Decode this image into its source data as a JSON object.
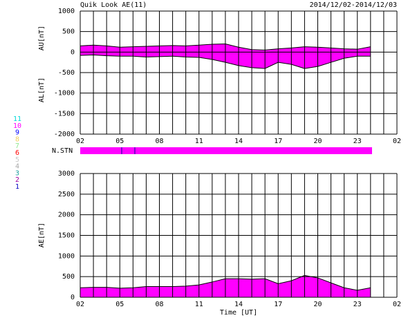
{
  "chart_data": [
    {
      "type": "area",
      "title": "Quik Look AE(11)",
      "subtitle": "2014/12/02-2014/12/03",
      "y_labels": [
        "AU[nT]",
        "AL[nT]"
      ],
      "x": [
        0,
        1,
        2,
        3,
        4,
        5,
        6,
        7,
        8,
        9,
        10,
        11,
        12,
        13,
        14,
        15,
        16,
        17,
        18,
        19,
        20,
        21,
        22
      ],
      "series": [
        {
          "color": "#000000",
          "fill": "#ff00ff",
          "values": [
            150,
            170,
            150,
            120,
            130,
            140,
            150,
            160,
            150,
            170,
            190,
            200,
            120,
            60,
            50,
            80,
            100,
            130,
            120,
            100,
            80,
            70,
            130
          ]
        },
        {
          "color": "#000000",
          "fill": "#ff00ff",
          "values": [
            -80,
            -70,
            -90,
            -100,
            -100,
            -120,
            -110,
            -100,
            -120,
            -130,
            -180,
            -250,
            -330,
            -380,
            -400,
            -250,
            -300,
            -400,
            -350,
            -250,
            -150,
            -100,
            -100
          ]
        }
      ],
      "xlim": [
        0,
        24
      ],
      "xticks": [
        {
          "value": 0,
          "label": "02"
        },
        {
          "value": 3,
          "label": "05"
        },
        {
          "value": 6,
          "label": "08"
        },
        {
          "value": 9,
          "label": "11"
        },
        {
          "value": 12,
          "label": "14"
        },
        {
          "value": 15,
          "label": "17"
        },
        {
          "value": 18,
          "label": "20"
        },
        {
          "value": 21,
          "label": "23"
        },
        {
          "value": 24,
          "label": "02"
        }
      ],
      "x_minor": [
        1,
        2,
        4,
        5,
        7,
        8,
        10,
        11,
        13,
        14,
        16,
        17,
        19,
        20,
        22,
        23
      ],
      "ylim": [
        -2000,
        1000
      ],
      "yticks": [
        -2000,
        -1500,
        -1000,
        -500,
        0,
        500,
        1000
      ],
      "grid": true
    },
    {
      "type": "area",
      "x_label": "Time [UT]",
      "y_labels": [
        "AE[nT]"
      ],
      "x": [
        0,
        1,
        2,
        3,
        4,
        5,
        6,
        7,
        8,
        9,
        10,
        11,
        12,
        13,
        14,
        15,
        16,
        17,
        18,
        19,
        20,
        21,
        22
      ],
      "series": [
        {
          "color": "#000000",
          "fill": "#ff00ff",
          "values": [
            230,
            240,
            240,
            220,
            230,
            260,
            260,
            260,
            270,
            300,
            370,
            450,
            450,
            440,
            450,
            330,
            400,
            530,
            470,
            350,
            230,
            170,
            230
          ]
        }
      ],
      "xlim": [
        0,
        24
      ],
      "xticks": [
        {
          "value": 0,
          "label": "02"
        },
        {
          "value": 3,
          "label": "05"
        },
        {
          "value": 6,
          "label": "08"
        },
        {
          "value": 9,
          "label": "11"
        },
        {
          "value": 12,
          "label": "14"
        },
        {
          "value": 15,
          "label": "17"
        },
        {
          "value": 18,
          "label": "20"
        },
        {
          "value": 21,
          "label": "23"
        },
        {
          "value": 24,
          "label": "02"
        }
      ],
      "x_minor": [
        1,
        2,
        4,
        5,
        7,
        8,
        10,
        11,
        13,
        14,
        16,
        17,
        19,
        20,
        22,
        23
      ],
      "ylim": [
        0,
        3000
      ],
      "yticks": [
        0,
        500,
        1000,
        1500,
        2000,
        2500,
        3000
      ],
      "grid": true
    }
  ],
  "station_panel": {
    "label": "N.STN",
    "stations": [
      {
        "label": "11",
        "color": "#00d8d8"
      },
      {
        "label": "10",
        "color": "#ff00ff"
      },
      {
        "label": "9",
        "color": "#0000ff"
      },
      {
        "label": "8",
        "color": "#f0d060"
      },
      {
        "label": "7",
        "color": "#90e890"
      },
      {
        "label": "6",
        "color": "#ff0000"
      },
      {
        "label": "5",
        "color": "#c8c8c8"
      },
      {
        "label": "4",
        "color": "#a8a8a8"
      },
      {
        "label": "3",
        "color": "#20a0a0"
      },
      {
        "label": "2",
        "color": "#a000a0"
      },
      {
        "label": "1",
        "color": "#0000c0"
      }
    ]
  }
}
